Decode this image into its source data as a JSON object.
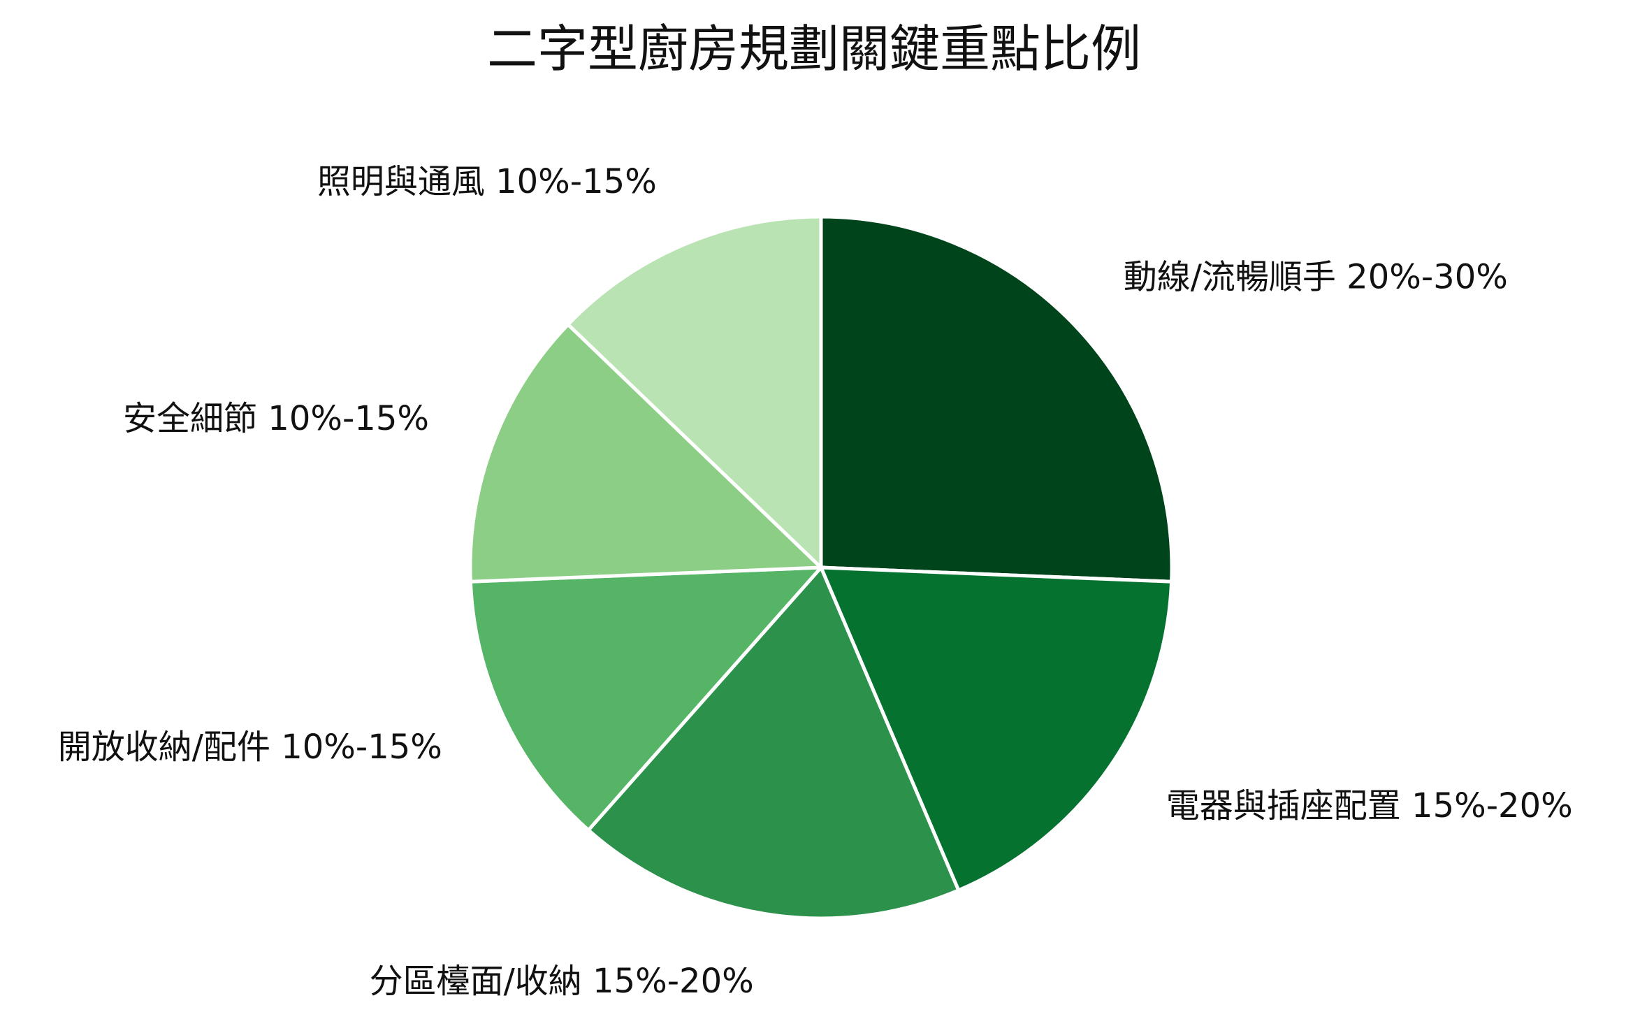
{
  "chart_data": {
    "type": "pie",
    "title": "二字型廚房規劃關鍵重點比例",
    "start_angle_deg": 0,
    "direction": "clockwise",
    "legend": "none",
    "slices": [
      {
        "label": "動線/流暢順手 20%-30%",
        "value": 25,
        "color": "#00441b"
      },
      {
        "label": "電器與插座配置 15%-20%",
        "value": 17.5,
        "color": "#067230"
      },
      {
        "label": "分區檯面/收納 15%-20%",
        "value": 17.5,
        "color": "#2c914a"
      },
      {
        "label": "開放收納/配件 10%-15%",
        "value": 12.5,
        "color": "#55b466"
      },
      {
        "label": "安全細節 10%-15%",
        "value": 12.5,
        "color": "#8dce87"
      },
      {
        "label": "照明與通風 10%-15%",
        "value": 12.5,
        "color": "#b9e3b2"
      }
    ]
  }
}
